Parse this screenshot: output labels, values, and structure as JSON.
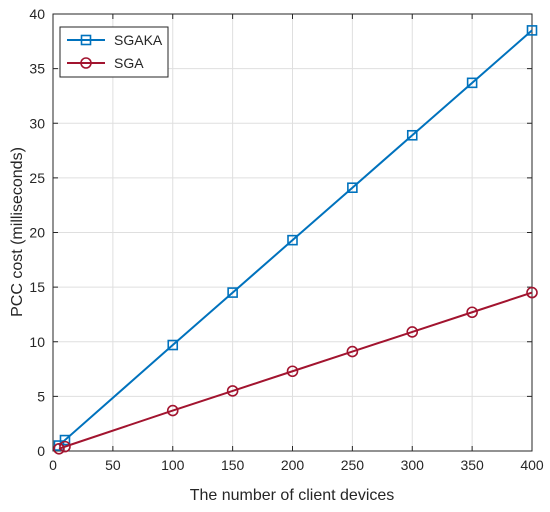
{
  "chart_data": {
    "type": "line",
    "xlabel": "The number of client devices",
    "ylabel": "PCC cost (milliseconds)",
    "xlim": [
      0,
      400
    ],
    "ylim": [
      0,
      40
    ],
    "xticks": [
      0,
      50,
      100,
      150,
      200,
      250,
      300,
      350,
      400
    ],
    "yticks": [
      0,
      5,
      10,
      15,
      20,
      25,
      30,
      35,
      40
    ],
    "grid": true,
    "legend_position": "top-left",
    "series": [
      {
        "name": "SGAKA",
        "color": "#0072BD",
        "marker": "square",
        "x": [
          5,
          10,
          100,
          150,
          200,
          250,
          300,
          350,
          400
        ],
        "y": [
          0.5,
          1.0,
          9.7,
          14.5,
          19.3,
          24.1,
          28.9,
          33.7,
          38.5
        ]
      },
      {
        "name": "SGA",
        "color": "#A2142F",
        "marker": "circle",
        "x": [
          5,
          10,
          100,
          150,
          200,
          250,
          300,
          350,
          400
        ],
        "y": [
          0.2,
          0.4,
          3.7,
          5.5,
          7.3,
          9.1,
          10.9,
          12.7,
          14.5
        ]
      }
    ]
  }
}
